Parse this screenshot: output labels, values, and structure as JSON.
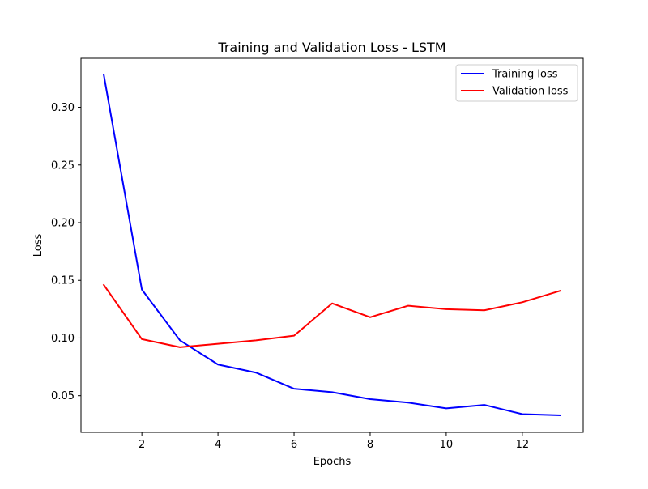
{
  "chart_data": {
    "type": "line",
    "title": "Training and Validation Loss - LSTM",
    "xlabel": "Epochs",
    "ylabel": "Loss",
    "x": [
      1,
      2,
      3,
      4,
      5,
      6,
      7,
      8,
      9,
      10,
      11,
      12,
      13
    ],
    "xlim": [
      0.4,
      13.6
    ],
    "ylim": [
      0.0182,
      0.3425
    ],
    "xticks": [
      2,
      4,
      6,
      8,
      10,
      12
    ],
    "xtick_labels": [
      "2",
      "4",
      "6",
      "8",
      "10",
      "12"
    ],
    "yticks": [
      0.05,
      0.1,
      0.15,
      0.2,
      0.25,
      0.3
    ],
    "ytick_labels": [
      "0.05",
      "0.10",
      "0.15",
      "0.20",
      "0.25",
      "0.30"
    ],
    "grid": false,
    "legend_position": "top-right",
    "series": [
      {
        "name": "Training loss",
        "color": "#0000ff",
        "values": [
          0.328,
          0.142,
          0.098,
          0.077,
          0.07,
          0.056,
          0.053,
          0.047,
          0.044,
          0.039,
          0.042,
          0.034,
          0.033
        ]
      },
      {
        "name": "Validation loss",
        "color": "#ff0000",
        "values": [
          0.146,
          0.099,
          0.092,
          0.095,
          0.098,
          0.102,
          0.13,
          0.118,
          0.128,
          0.125,
          0.124,
          0.131,
          0.141
        ]
      }
    ]
  }
}
